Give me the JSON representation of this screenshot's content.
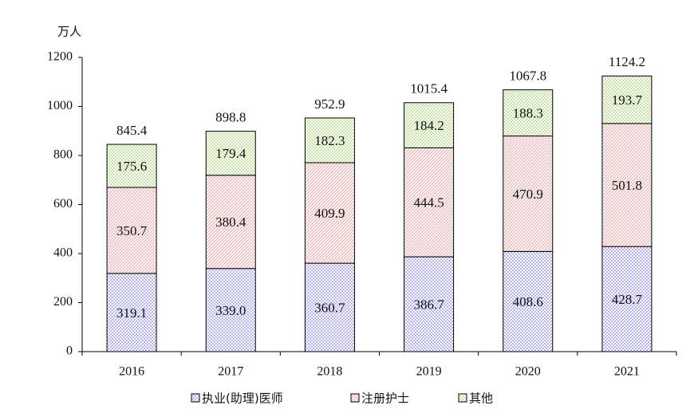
{
  "chart_data": {
    "type": "stacked_bar",
    "unit_label": "万人",
    "categories": [
      "2016",
      "2017",
      "2018",
      "2019",
      "2020",
      "2021"
    ],
    "series": [
      {
        "name": "执业(助理)医师",
        "color": "#b9b4ec",
        "values": [
          319.1,
          339.0,
          360.7,
          386.7,
          408.6,
          428.7
        ],
        "value_labels": [
          "319.1",
          "339.0",
          "360.7",
          "386.7",
          "408.6",
          "428.7"
        ]
      },
      {
        "name": "注册护士",
        "color": "#e9b3b3",
        "values": [
          350.7,
          380.4,
          409.9,
          444.5,
          470.9,
          501.8
        ]
      },
      {
        "name": "其他",
        "color": "#c9e6a8",
        "values": [
          175.6,
          179.4,
          182.3,
          184.2,
          188.3,
          193.7
        ]
      }
    ],
    "totals": [
      845.4,
      898.8,
      952.9,
      1015.4,
      1067.8,
      1124.2
    ],
    "ylim": [
      0,
      1200
    ],
    "yticks": [
      0,
      200,
      400,
      600,
      800,
      1000,
      1200
    ],
    "grid": false,
    "legend": "bottom"
  }
}
